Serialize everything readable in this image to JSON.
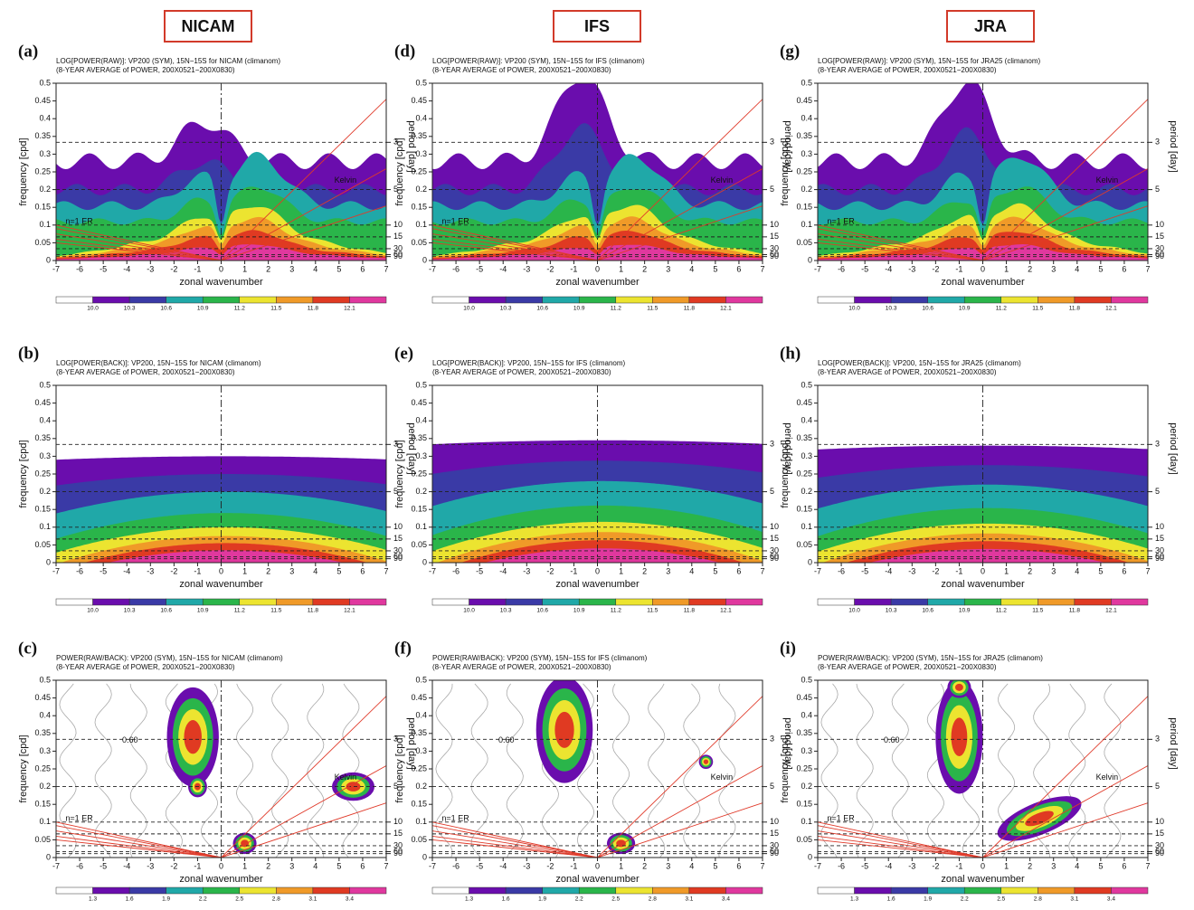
{
  "headers": [
    "NICAM",
    "IFS",
    "JRA"
  ],
  "xlabel": "zonal wavenumber",
  "ylabel": "frequency [cpd]",
  "y2label": "period [day]",
  "xlim": [
    -7,
    7
  ],
  "ylim": [
    0,
    0.5
  ],
  "xticks": [
    -7,
    -6,
    -5,
    -4,
    -3,
    -2,
    -1,
    0,
    1,
    2,
    3,
    4,
    5,
    6,
    7
  ],
  "yticks": [
    0,
    0.05,
    0.1,
    0.15,
    0.2,
    0.25,
    0.3,
    0.35,
    0.4,
    0.45,
    0.5
  ],
  "period_ticks": [
    3,
    5,
    10,
    15,
    30,
    60,
    90
  ],
  "colors": [
    "#ffffff",
    "#6a0dad",
    "#3a3aa6",
    "#20a8a8",
    "#2ab54a",
    "#ece430",
    "#f09a28",
    "#e03a22",
    "#e0389e"
  ],
  "colorbar_power": [
    {
      "value": 10.0,
      "label": "10.0"
    },
    10.3,
    10.6,
    10.9,
    11.2,
    11.5,
    11.8,
    12.1
  ],
  "colorbar_ratio": [
    1.3,
    1.6,
    1.9,
    2.2,
    2.5,
    2.8,
    3.1,
    3.4
  ],
  "panels": [
    {
      "label": "(a)",
      "kind": "raw",
      "title": "LOG[POWER(RAW)]: VP200 (SYM), 15N−15S for NICAM (climanom)",
      "subtitle": "(8-YEAR AVERAGE of POWER, 200X0521−200X0830)",
      "annotations": [
        "Kelvin",
        "n=1 ER"
      ]
    },
    {
      "label": "(b)",
      "kind": "back",
      "title": "LOG[POWER(BACK)]: VP200, 15N−15S for NICAM (climanom)",
      "subtitle": "(8-YEAR AVERAGE of POWER, 200X0521−200X0830)",
      "annotations": []
    },
    {
      "label": "(c)",
      "kind": "ratio",
      "title": "POWER(RAW/BACK): VP200 (SYM), 15N−15S for NICAM (climanom)",
      "subtitle": "(8-YEAR AVERAGE of POWER, 200X0521−200X0830)",
      "annotations": [
        "Kelvin",
        "n=1 ER",
        "0.60"
      ]
    },
    {
      "label": "(d)",
      "kind": "raw",
      "title": "LOG[POWER(RAW)]: VP200 (SYM), 15N−15S for IFS (climanom)",
      "subtitle": "(8-YEAR AVERAGE of POWER, 200X0521−200X0830)",
      "annotations": [
        "Kelvin",
        "n=1 ER"
      ]
    },
    {
      "label": "(e)",
      "kind": "back",
      "title": "LOG[POWER(BACK)]: VP200, 15N−15S for IFS (climanom)",
      "subtitle": "(8-YEAR AVERAGE of POWER, 200X0521−200X0830)",
      "annotations": []
    },
    {
      "label": "(f)",
      "kind": "ratio",
      "title": "POWER(RAW/BACK): VP200 (SYM), 15N−15S for IFS (climanom)",
      "subtitle": "(8-YEAR AVERAGE of POWER, 200X0521−200X0830)",
      "annotations": [
        "Kelvin",
        "n=1 ER",
        "0.60"
      ]
    },
    {
      "label": "(g)",
      "kind": "raw",
      "title": "LOG[POWER(RAW)]: VP200 (SYM), 15N−15S for JRA25 (climanom)",
      "subtitle": "(8-YEAR AVERAGE of POWER, 200X0521−200X0830)",
      "annotations": [
        "Kelvin",
        "n=1 ER"
      ]
    },
    {
      "label": "(h)",
      "kind": "back",
      "title": "LOG[POWER(BACK)]: VP200, 15N−15S for JRA25 (climanom)",
      "subtitle": "(8-YEAR AVERAGE of POWER, 200X0521−200X0830)",
      "annotations": []
    },
    {
      "label": "(i)",
      "kind": "ratio",
      "title": "POWER(RAW/BACK): VP200 (SYM), 15N−15S for JRA25 (climanom)",
      "subtitle": "(8-YEAR AVERAGE of POWER, 200X0521−200X0830)",
      "annotations": [
        "Kelvin",
        "n=1 ER",
        "0.60"
      ]
    }
  ]
}
